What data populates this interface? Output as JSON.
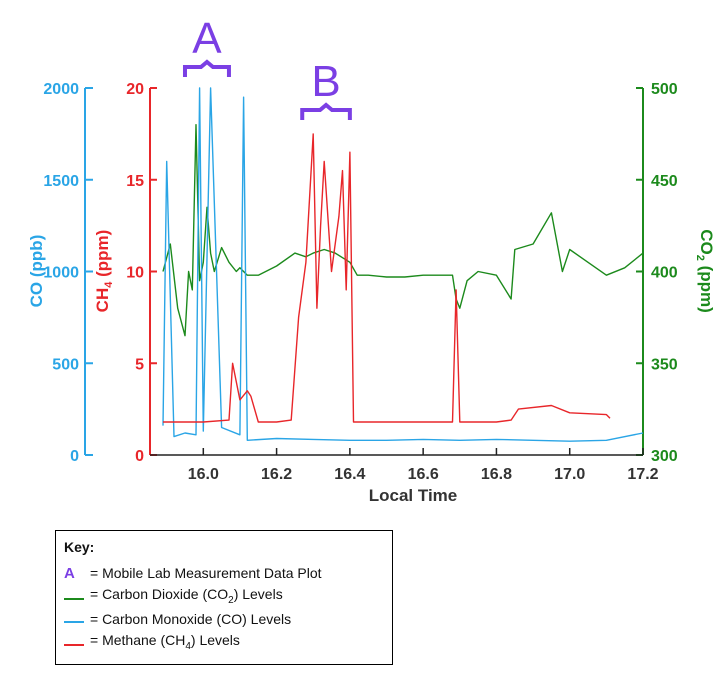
{
  "chart_data": {
    "type": "line",
    "x_axis": {
      "label": "Local Time",
      "ticks": [
        "16.0",
        "16.2",
        "16.4",
        "16.6",
        "16.8",
        "17.0",
        "17.2"
      ],
      "range": [
        15.89,
        17.2
      ]
    },
    "y_axes": {
      "co": {
        "label_main": "CO",
        "label_unit": " (ppb)",
        "ticks": [
          "0",
          "500",
          "1000",
          "1500",
          "2000"
        ],
        "range": [
          0,
          2000
        ],
        "color": "#2aa5e6"
      },
      "ch4": {
        "label_main": "CH",
        "label_sub": "4",
        "label_unit": " (ppm)",
        "ticks": [
          "0",
          "5",
          "10",
          "15",
          "20"
        ],
        "range": [
          0,
          20
        ],
        "color": "#e8262a"
      },
      "co2": {
        "label_main": "CO",
        "label_sub": "2",
        "label_unit": " (ppm)",
        "ticks": [
          "300",
          "350",
          "400",
          "450",
          "500"
        ],
        "range": [
          300,
          500
        ],
        "color": "#1c8a1c"
      }
    },
    "annotations": [
      {
        "label": "A",
        "x_start": 15.95,
        "x_end": 16.07,
        "color": "#7b3fe4"
      },
      {
        "label": "B",
        "x_start": 16.27,
        "x_end": 16.4,
        "color": "#7b3fe4"
      }
    ],
    "series": [
      {
        "name": "Carbon Dioxide (CO2) Levels",
        "axis": "co2",
        "color": "#1c8a1c",
        "x": [
          15.89,
          15.91,
          15.93,
          15.95,
          15.96,
          15.97,
          15.98,
          15.99,
          16.0,
          16.01,
          16.02,
          16.03,
          16.05,
          16.07,
          16.09,
          16.1,
          16.12,
          16.15,
          16.2,
          16.25,
          16.28,
          16.3,
          16.33,
          16.36,
          16.4,
          16.42,
          16.45,
          16.5,
          16.55,
          16.6,
          16.65,
          16.68,
          16.69,
          16.7,
          16.72,
          16.75,
          16.8,
          16.84,
          16.85,
          16.9,
          16.95,
          16.98,
          17.0,
          17.05,
          17.1,
          17.15,
          17.2
        ],
        "y": [
          400,
          415,
          380,
          365,
          400,
          390,
          480,
          395,
          405,
          435,
          410,
          400,
          413,
          405,
          400,
          402,
          398,
          398,
          403,
          410,
          408,
          410,
          412,
          410,
          405,
          398,
          398,
          397,
          397,
          398,
          398,
          398,
          385,
          380,
          395,
          400,
          398,
          385,
          412,
          415,
          432,
          400,
          412,
          405,
          398,
          402,
          410
        ]
      },
      {
        "name": "Carbon Monoxide (CO) Levels",
        "axis": "co",
        "color": "#2aa5e6",
        "x": [
          15.89,
          15.9,
          15.92,
          15.95,
          15.98,
          15.99,
          16.0,
          16.02,
          16.05,
          16.1,
          16.11,
          16.12,
          16.2,
          16.3,
          16.4,
          16.5,
          16.6,
          16.7,
          16.8,
          16.9,
          17.0,
          17.1,
          17.2
        ],
        "y": [
          160,
          1600,
          100,
          120,
          110,
          2000,
          130,
          2000,
          150,
          110,
          1950,
          80,
          90,
          85,
          80,
          80,
          85,
          80,
          85,
          80,
          75,
          80,
          120
        ]
      },
      {
        "name": "Methane (CH4) Levels",
        "axis": "ch4",
        "color": "#e8262a",
        "x": [
          15.89,
          15.95,
          16.0,
          16.07,
          16.08,
          16.1,
          16.12,
          16.13,
          16.15,
          16.2,
          16.24,
          16.26,
          16.28,
          16.3,
          16.31,
          16.32,
          16.33,
          16.35,
          16.37,
          16.38,
          16.39,
          16.4,
          16.41,
          16.45,
          16.5,
          16.6,
          16.68,
          16.69,
          16.7,
          16.8,
          16.84,
          16.86,
          16.95,
          17.0,
          17.1,
          17.11
        ],
        "y": [
          1.8,
          1.8,
          1.8,
          1.9,
          5.0,
          3.0,
          3.5,
          3.2,
          1.8,
          1.8,
          1.9,
          7.5,
          10.5,
          17.5,
          8.0,
          12.5,
          16.0,
          10.0,
          13.0,
          15.5,
          9.0,
          16.5,
          1.8,
          1.8,
          1.8,
          1.8,
          1.8,
          9.0,
          1.8,
          1.8,
          1.9,
          2.5,
          2.7,
          2.3,
          2.2,
          2.0
        ]
      }
    ]
  },
  "key": {
    "title": "Key:",
    "rows": [
      {
        "type": "letter",
        "letter": "A",
        "text": "= Mobile Lab Measurement Data Plot",
        "color": "#7b3fe4"
      },
      {
        "type": "swatch",
        "text_pre": "= Carbon Dioxide (CO",
        "sub": "2",
        "text_post": ") Levels",
        "color": "#1c8a1c"
      },
      {
        "type": "swatch",
        "text_pre": "= Carbon Monoxide (CO) Levels",
        "sub": "",
        "text_post": "",
        "color": "#2aa5e6"
      },
      {
        "type": "swatch",
        "text_pre": "= Methane (CH",
        "sub": "4",
        "text_post": ") Levels",
        "color": "#e8262a"
      }
    ]
  }
}
